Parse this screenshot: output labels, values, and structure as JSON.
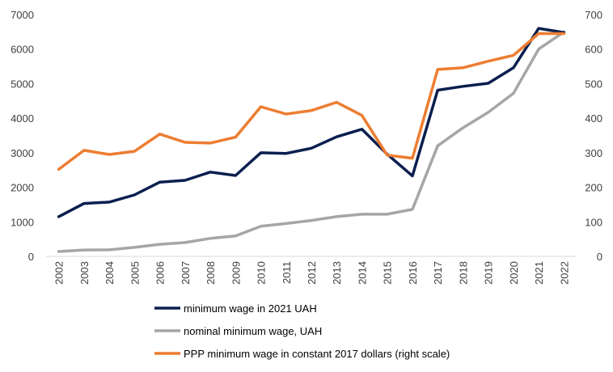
{
  "chart_data": {
    "type": "line",
    "title": "",
    "xlabel": "",
    "ylabel": "",
    "ylim": [
      0,
      7000
    ],
    "y2lim": [
      0,
      700
    ],
    "y_ticks": [
      "0",
      "1000",
      "2000",
      "3000",
      "4000",
      "5000",
      "6000",
      "7000"
    ],
    "y2_ticks": [
      "0",
      "100",
      "200",
      "300",
      "400",
      "500",
      "600",
      "700"
    ],
    "grid": false,
    "legend_position": "bottom",
    "categories": [
      "2002",
      "2003",
      "2004",
      "2005",
      "2006",
      "2007",
      "2008",
      "2009",
      "2010",
      "2011",
      "2012",
      "2013",
      "2014",
      "2015",
      "2016",
      "2017",
      "2018",
      "2019",
      "2020",
      "2021",
      "2022"
    ],
    "series": [
      {
        "name": "minimum wage in 2021 UAH",
        "axis": "left",
        "color": "#0b1f4f",
        "values": [
          1150,
          1530,
          1570,
          1780,
          2150,
          2200,
          2440,
          2340,
          3000,
          2980,
          3130,
          3460,
          3680,
          2960,
          2330,
          4810,
          4920,
          5010,
          5460,
          6600,
          6480
        ]
      },
      {
        "name": "nominal minimum wage, UAH",
        "axis": "left",
        "color": "#a6a6a6",
        "values": [
          140,
          185,
          190,
          260,
          350,
          400,
          520,
          590,
          870,
          950,
          1040,
          1150,
          1220,
          1220,
          1360,
          3200,
          3720,
          4170,
          4720,
          6000,
          6500
        ]
      },
      {
        "name": "PPP minimum wage in constant 2017 dollars (right scale)",
        "axis": "right",
        "color": "#ed7d31",
        "values": [
          252,
          307,
          295,
          304,
          354,
          330,
          328,
          345,
          433,
          412,
          422,
          446,
          408,
          293,
          284,
          541,
          546,
          565,
          582,
          645,
          645
        ]
      }
    ]
  }
}
